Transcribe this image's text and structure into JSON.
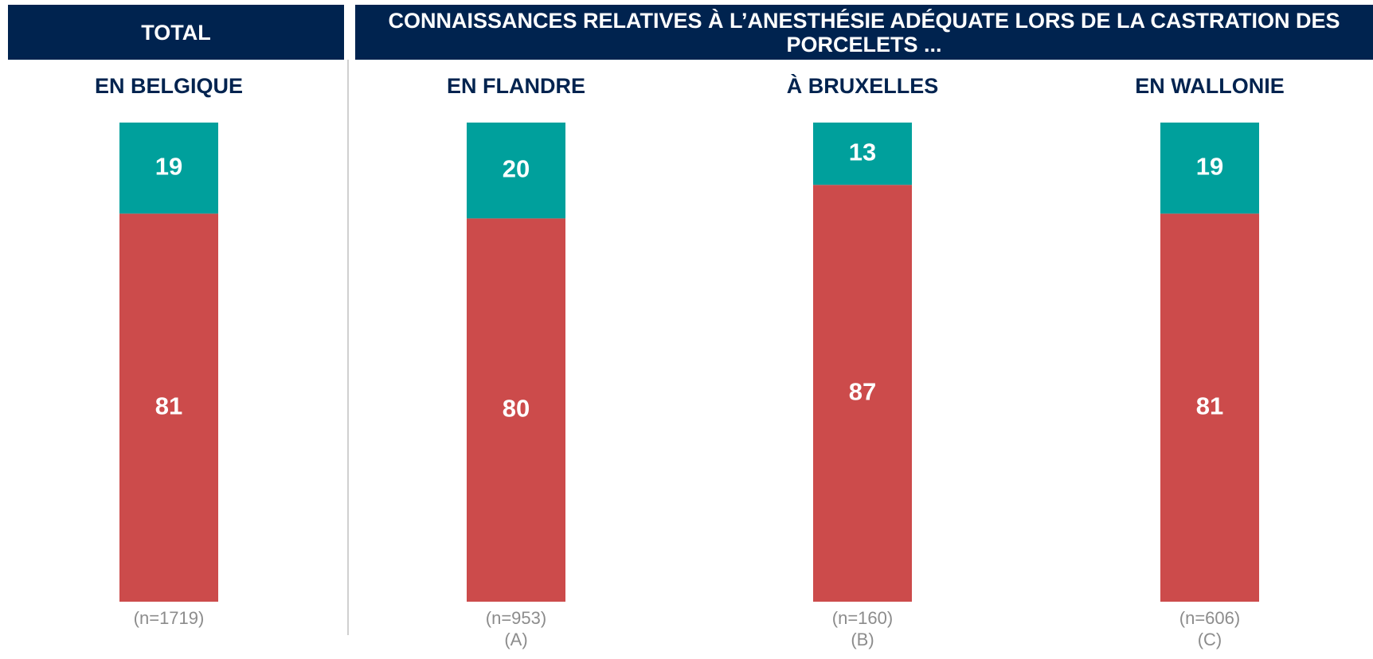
{
  "header": {
    "left": "TOTAL",
    "right": "CONNAISSANCES RELATIVES À L’ANESTHÉSIE ADÉQUATE LORS DE LA CASTRATION DES PORCELETS ..."
  },
  "chart_data": {
    "type": "stacked_bar",
    "categories": [
      "EN BELGIQUE",
      "EN FLANDRE",
      "À BRUXELLES",
      "EN WALLONIE"
    ],
    "series": [
      {
        "color": "#cc4b4b",
        "values": [
          81,
          80,
          87,
          81
        ]
      },
      {
        "color": "#00a09c",
        "values": [
          19,
          20,
          13,
          19
        ]
      }
    ],
    "sample_sizes": [
      "(n=1719)",
      "(n=953)",
      "(n=160)",
      "(n=606)"
    ],
    "group_letters": [
      null,
      "(A)",
      "(B)",
      "(C)"
    ],
    "ylim": [
      0,
      100
    ]
  }
}
